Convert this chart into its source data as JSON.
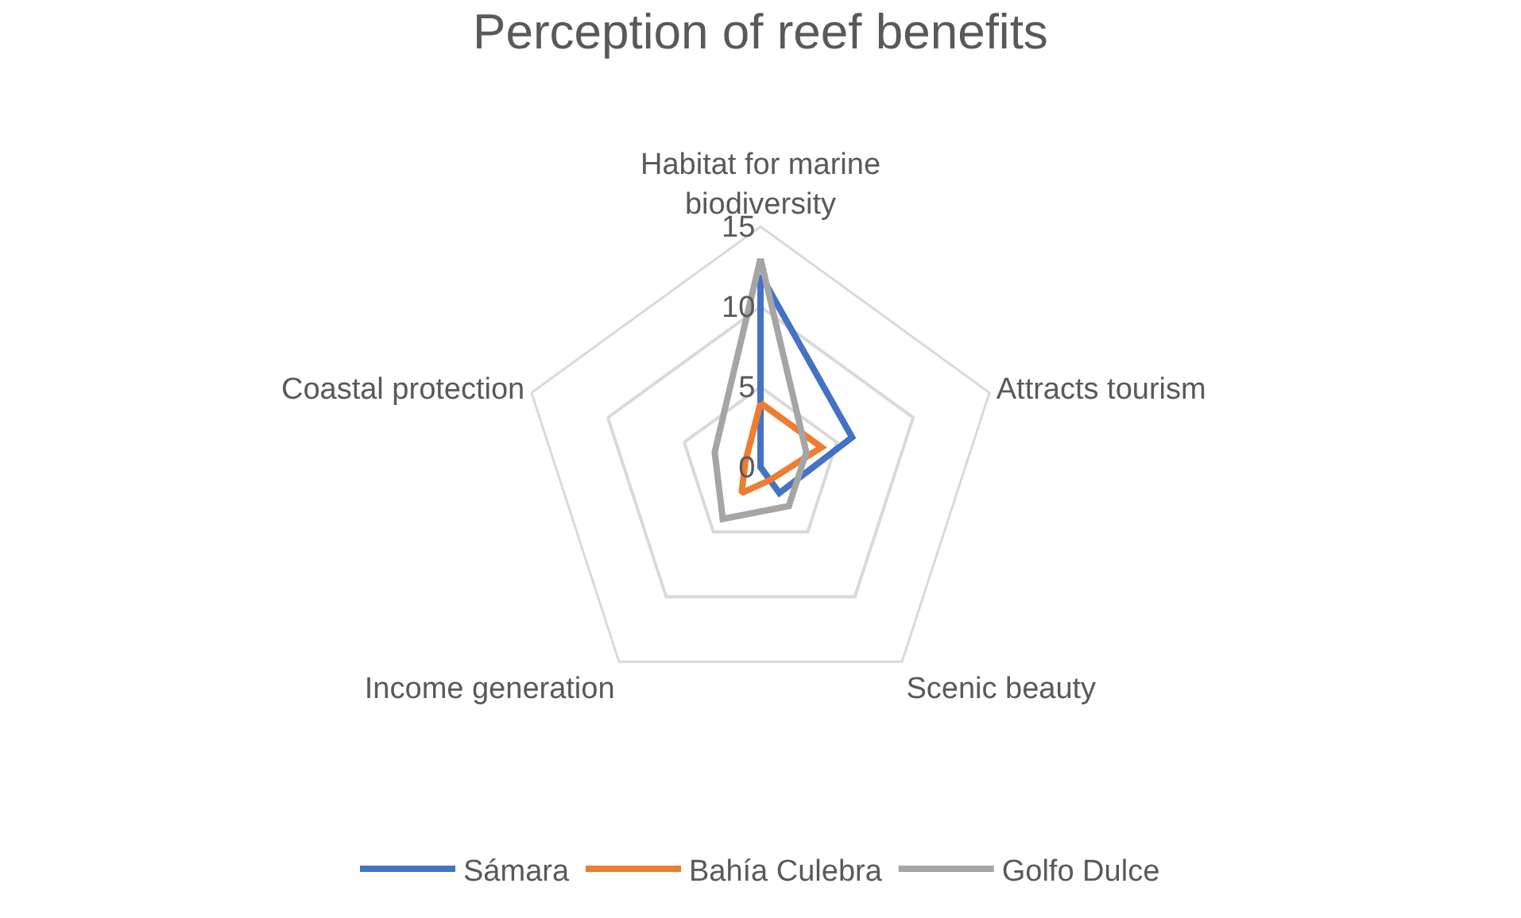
{
  "chart_data": {
    "type": "radar",
    "title": "Perception of reef benefits",
    "categories": [
      "Habitat for marine biodiversity",
      "Attracts tourism",
      "Scenic beauty",
      "Income generation",
      "Coastal protection"
    ],
    "series": [
      {
        "name": "Sámara",
        "color": "#4472c4",
        "values": [
          12,
          6,
          2,
          0,
          0
        ]
      },
      {
        "name": "Bahía Culebra",
        "color": "#ed7d31",
        "values": [
          4,
          4,
          1,
          2,
          1
        ]
      },
      {
        "name": "Golfo Dulce",
        "color": "#a5a5a5",
        "values": [
          13,
          3,
          3,
          4,
          3
        ]
      }
    ],
    "ylim": [
      0,
      15
    ],
    "yticks": [
      0,
      5,
      10,
      15
    ],
    "grid": true,
    "legend": "bottom",
    "marker": "none",
    "line_style": "solid"
  }
}
